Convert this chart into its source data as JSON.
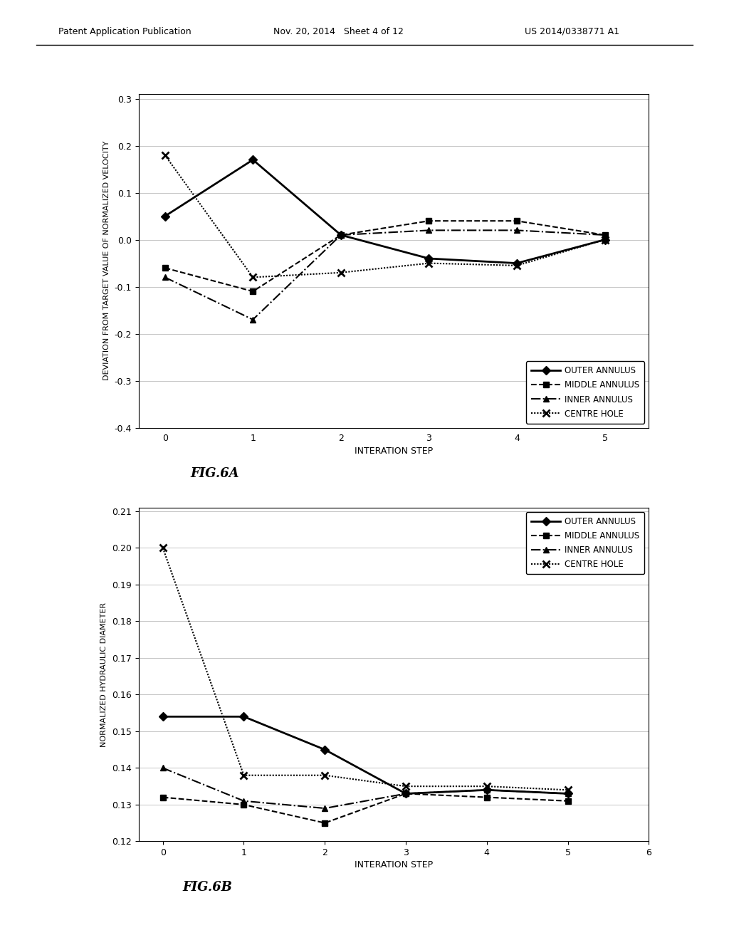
{
  "fig6a": {
    "title": "FIG.6A",
    "xlabel": "INTERATION STEP",
    "ylabel": "DEVIATION FROM TARGET VALUE OF NORMALIZED VELOCITY",
    "xlim": [
      -0.3,
      5.5
    ],
    "ylim": [
      -0.4,
      0.31
    ],
    "yticks": [
      -0.4,
      -0.3,
      -0.2,
      -0.1,
      0.0,
      0.1,
      0.2,
      0.3
    ],
    "xticks": [
      0,
      1,
      2,
      3,
      4,
      5
    ],
    "x": [
      0,
      1,
      2,
      3,
      4,
      5
    ],
    "outer_annulus": [
      0.05,
      0.17,
      0.01,
      -0.04,
      -0.05,
      0.0
    ],
    "middle_annulus": [
      -0.06,
      -0.11,
      0.01,
      0.04,
      0.04,
      0.01
    ],
    "inner_annulus": [
      -0.08,
      -0.17,
      0.01,
      0.02,
      0.02,
      0.01
    ],
    "centre_hole": [
      0.18,
      -0.08,
      -0.07,
      -0.05,
      -0.055,
      0.0
    ]
  },
  "fig6b": {
    "title": "FIG.6B",
    "xlabel": "INTERATION STEP",
    "ylabel": "NORMALIZED HYDRAULIC DIAMETER",
    "xlim": [
      -0.3,
      6.0
    ],
    "ylim": [
      0.12,
      0.211
    ],
    "yticks": [
      0.12,
      0.13,
      0.14,
      0.15,
      0.16,
      0.17,
      0.18,
      0.19,
      0.2,
      0.21
    ],
    "xticks": [
      0,
      1,
      2,
      3,
      4,
      5,
      6
    ],
    "x": [
      0,
      1,
      2,
      3,
      4,
      5
    ],
    "outer_annulus": [
      0.154,
      0.154,
      0.145,
      0.133,
      0.134,
      0.133
    ],
    "middle_annulus": [
      0.132,
      0.13,
      0.125,
      0.133,
      0.132,
      0.131
    ],
    "inner_annulus": [
      0.14,
      0.131,
      0.129,
      0.133,
      0.134,
      0.133
    ],
    "centre_hole": [
      0.2,
      0.138,
      0.138,
      0.135,
      0.135,
      0.134
    ]
  },
  "header_left": "Patent Application Publication",
  "header_date": "Nov. 20, 2014   Sheet 4 of 12",
  "header_right": "US 2014/0338771 A1",
  "legend_labels": [
    "OUTER ANNULUS",
    "MIDDLE ANNULUS",
    "INNER ANNULUS",
    "CENTRE HOLE"
  ],
  "background_color": "#ffffff",
  "line_color": "#000000"
}
